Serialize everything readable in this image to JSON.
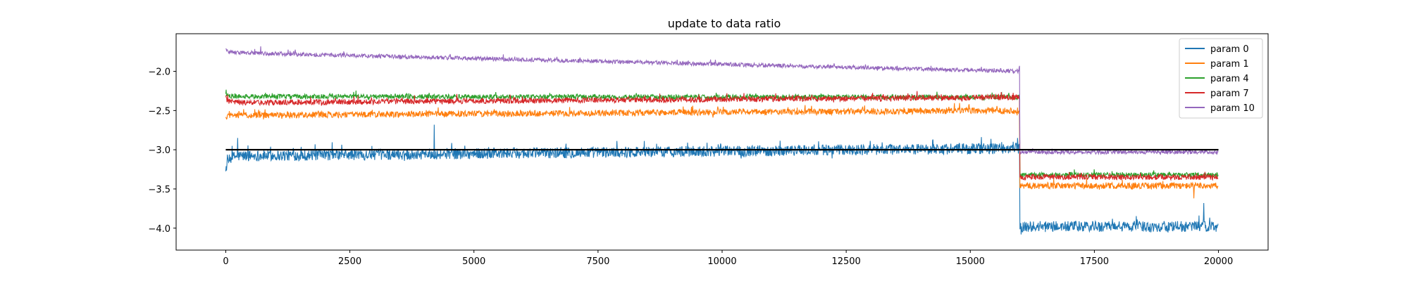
{
  "chart_data": {
    "type": "line",
    "title": "update to data ratio",
    "xlabel": "",
    "ylabel": "",
    "xlim": [
      -1000,
      21000
    ],
    "ylim": [
      -4.28,
      -1.52
    ],
    "xticks": [
      0,
      2500,
      5000,
      7500,
      10000,
      12500,
      15000,
      17500,
      20000
    ],
    "yticks": [
      -2.0,
      -2.5,
      -3.0,
      -3.5,
      -4.0
    ],
    "ytick_labels": [
      "−2.0",
      "−2.5",
      "−3.0",
      "−3.5",
      "−4.0"
    ],
    "grid": false,
    "legend_position": "top-right",
    "n_points": 20000,
    "breakpoint_x": 16000,
    "reference_line": {
      "y": -3.0,
      "x": [
        0,
        20000
      ],
      "color": "#000000"
    },
    "series": [
      {
        "name": "param 0",
        "color": "#1f77b4",
        "start": -3.25,
        "pre_begin": -3.08,
        "pre_end": -2.98,
        "post": -3.98,
        "noise": 0.07,
        "spikes": [
          [
            4200,
            -2.68
          ],
          [
            240,
            -2.85
          ],
          [
            1800,
            -2.93
          ],
          [
            15950,
            -2.85
          ],
          [
            16020,
            -4.08
          ],
          [
            19700,
            -3.68
          ]
        ]
      },
      {
        "name": "param 1",
        "color": "#ff7f0e",
        "start": -2.6,
        "pre_begin": -2.56,
        "pre_end": -2.5,
        "post": -3.46,
        "noise": 0.04,
        "spikes": [
          [
            19500,
            -3.62
          ]
        ]
      },
      {
        "name": "param 4",
        "color": "#2ca02c",
        "start": -2.28,
        "pre_begin": -2.32,
        "pre_end": -2.33,
        "post": -3.32,
        "noise": 0.03,
        "spikes": []
      },
      {
        "name": "param 7",
        "color": "#d62728",
        "start": -2.34,
        "pre_begin": -2.4,
        "pre_end": -2.33,
        "post": -3.35,
        "noise": 0.035,
        "spikes": []
      },
      {
        "name": "param 10",
        "color": "#9467bd",
        "start": -1.72,
        "pre_begin": -1.76,
        "pre_end": -2.0,
        "post": -3.03,
        "noise": 0.025,
        "spikes": [
          [
            700,
            -1.68
          ],
          [
            15990,
            -1.93
          ]
        ]
      }
    ]
  }
}
